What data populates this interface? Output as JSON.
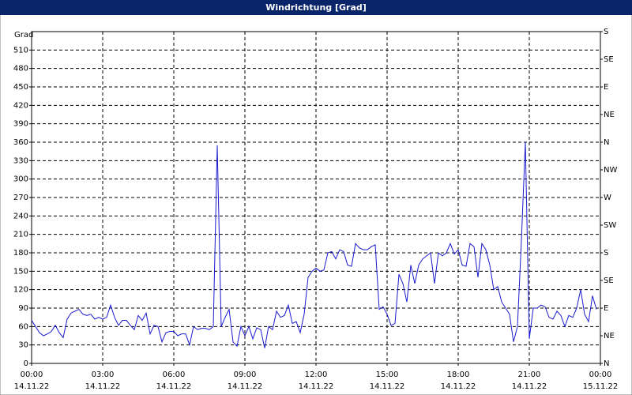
{
  "chart_data": {
    "type": "line",
    "title": "Windrichtung [Grad]",
    "y_label": "Grad",
    "color": "#1a1ad0",
    "grid": true,
    "xlim": [
      "14.11.22 00:00",
      "15.11.22 00:00"
    ],
    "xticks": [
      {
        "time": "00:00",
        "date": "14.11.22"
      },
      {
        "time": "03:00",
        "date": "14.11.22"
      },
      {
        "time": "06:00",
        "date": "14.11.22"
      },
      {
        "time": "09:00",
        "date": "14.11.22"
      },
      {
        "time": "12:00",
        "date": "14.11.22"
      },
      {
        "time": "15:00",
        "date": "14.11.22"
      },
      {
        "time": "18:00",
        "date": "14.11.22"
      },
      {
        "time": "21:00",
        "date": "14.11.22"
      },
      {
        "time": "00:00",
        "date": "15.11.22"
      }
    ],
    "ylim": [
      0,
      540
    ],
    "yticks": [
      0,
      30,
      60,
      90,
      120,
      150,
      180,
      210,
      240,
      270,
      300,
      330,
      360,
      390,
      420,
      450,
      480,
      510
    ],
    "y2lim": [
      0,
      540
    ],
    "y2ticks": [
      {
        "value": 0,
        "label": "N"
      },
      {
        "value": 45,
        "label": "NE"
      },
      {
        "value": 90,
        "label": "E"
      },
      {
        "value": 135,
        "label": "SE"
      },
      {
        "value": 180,
        "label": "S"
      },
      {
        "value": 225,
        "label": "SW"
      },
      {
        "value": 270,
        "label": "W"
      },
      {
        "value": 315,
        "label": "NW"
      },
      {
        "value": 360,
        "label": "N"
      },
      {
        "value": 405,
        "label": "NE"
      },
      {
        "value": 450,
        "label": "E"
      },
      {
        "value": 495,
        "label": "SE"
      },
      {
        "value": 540,
        "label": "S"
      }
    ],
    "x": [
      "14.11.22 00:00",
      "14.11.22 00:10",
      "14.11.22 00:20",
      "14.11.22 00:30",
      "14.11.22 00:40",
      "14.11.22 00:50",
      "14.11.22 01:00",
      "14.11.22 01:10",
      "14.11.22 01:20",
      "14.11.22 01:30",
      "14.11.22 01:40",
      "14.11.22 01:50",
      "14.11.22 02:00",
      "14.11.22 02:10",
      "14.11.22 02:20",
      "14.11.22 02:30",
      "14.11.22 02:40",
      "14.11.22 02:50",
      "14.11.22 03:00",
      "14.11.22 03:10",
      "14.11.22 03:20",
      "14.11.22 03:30",
      "14.11.22 03:40",
      "14.11.22 03:50",
      "14.11.22 04:00",
      "14.11.22 04:10",
      "14.11.22 04:20",
      "14.11.22 04:30",
      "14.11.22 04:40",
      "14.11.22 04:50",
      "14.11.22 05:00",
      "14.11.22 05:10",
      "14.11.22 05:20",
      "14.11.22 05:30",
      "14.11.22 05:40",
      "14.11.22 05:50",
      "14.11.22 06:00",
      "14.11.22 06:10",
      "14.11.22 06:20",
      "14.11.22 06:30",
      "14.11.22 06:40",
      "14.11.22 06:50",
      "14.11.22 07:00",
      "14.11.22 07:10",
      "14.11.22 07:20",
      "14.11.22 07:30",
      "14.11.22 07:40",
      "14.11.22 07:50",
      "14.11.22 08:00",
      "14.11.22 08:10",
      "14.11.22 08:20",
      "14.11.22 08:30",
      "14.11.22 08:40",
      "14.11.22 08:50",
      "14.11.22 09:00",
      "14.11.22 09:10",
      "14.11.22 09:20",
      "14.11.22 09:30",
      "14.11.22 09:40",
      "14.11.22 09:50",
      "14.11.22 10:00",
      "14.11.22 10:10",
      "14.11.22 10:20",
      "14.11.22 10:30",
      "14.11.22 10:40",
      "14.11.22 10:50",
      "14.11.22 11:00",
      "14.11.22 11:10",
      "14.11.22 11:20",
      "14.11.22 11:30",
      "14.11.22 11:40",
      "14.11.22 11:50",
      "14.11.22 12:00",
      "14.11.22 12:10",
      "14.11.22 12:20",
      "14.11.22 12:30",
      "14.11.22 12:40",
      "14.11.22 12:50",
      "14.11.22 13:00",
      "14.11.22 13:10",
      "14.11.22 13:20",
      "14.11.22 13:30",
      "14.11.22 13:40",
      "14.11.22 13:50",
      "14.11.22 14:00",
      "14.11.22 14:10",
      "14.11.22 14:20",
      "14.11.22 14:30",
      "14.11.22 14:40",
      "14.11.22 14:50",
      "14.11.22 15:00",
      "14.11.22 15:10",
      "14.11.22 15:20",
      "14.11.22 15:30",
      "14.11.22 15:40",
      "14.11.22 15:50",
      "14.11.22 16:00",
      "14.11.22 16:10",
      "14.11.22 16:20",
      "14.11.22 16:30",
      "14.11.22 16:40",
      "14.11.22 16:50",
      "14.11.22 17:00",
      "14.11.22 17:10",
      "14.11.22 17:20",
      "14.11.22 17:30",
      "14.11.22 17:40",
      "14.11.22 17:50",
      "14.11.22 18:00",
      "14.11.22 18:10",
      "14.11.22 18:20",
      "14.11.22 18:30",
      "14.11.22 18:40",
      "14.11.22 18:50",
      "14.11.22 19:00",
      "14.11.22 19:10",
      "14.11.22 19:20",
      "14.11.22 19:30",
      "14.11.22 19:40",
      "14.11.22 19:50",
      "14.11.22 20:00",
      "14.11.22 20:10",
      "14.11.22 20:20",
      "14.11.22 20:30",
      "14.11.22 20:40",
      "14.11.22 20:50",
      "14.11.22 21:00",
      "14.11.22 21:10",
      "14.11.22 21:20",
      "14.11.22 21:30",
      "14.11.22 21:40",
      "14.11.22 21:50",
      "14.11.22 22:00",
      "14.11.22 22:10",
      "14.11.22 22:20",
      "14.11.22 22:30",
      "14.11.22 22:40",
      "14.11.22 22:50",
      "14.11.22 23:00",
      "14.11.22 23:10",
      "14.11.22 23:20",
      "14.11.22 23:30",
      "14.11.22 23:40",
      "14.11.22 23:50"
    ],
    "values": [
      70,
      60,
      50,
      45,
      48,
      52,
      62,
      50,
      42,
      72,
      82,
      85,
      88,
      80,
      78,
      80,
      72,
      75,
      72,
      75,
      95,
      75,
      62,
      70,
      70,
      62,
      55,
      78,
      70,
      82,
      48,
      62,
      60,
      35,
      50,
      52,
      52,
      45,
      48,
      48,
      30,
      60,
      55,
      57,
      57,
      55,
      60,
      355,
      60,
      75,
      88,
      35,
      28,
      60,
      45,
      60,
      40,
      58,
      55,
      25,
      60,
      55,
      85,
      75,
      78,
      95,
      65,
      68,
      50,
      80,
      140,
      150,
      155,
      150,
      152,
      180,
      182,
      170,
      185,
      182,
      160,
      158,
      195,
      188,
      185,
      185,
      190,
      193,
      88,
      92,
      80,
      62,
      65,
      145,
      130,
      100,
      160,
      130,
      160,
      170,
      175,
      180,
      130,
      180,
      175,
      180,
      195,
      178,
      185,
      160,
      158,
      195,
      190,
      140,
      195,
      185,
      160,
      120,
      125,
      100,
      90,
      80,
      35,
      60,
      200,
      360,
      40,
      90,
      90,
      95,
      92,
      75,
      72,
      85,
      78,
      60,
      78,
      75,
      90,
      120,
      80,
      68,
      110,
      88
    ]
  }
}
